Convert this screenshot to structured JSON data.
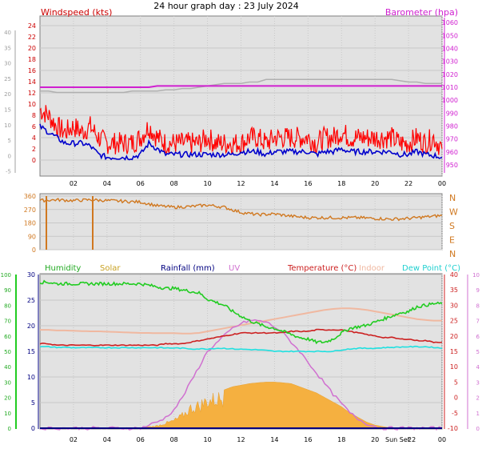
{
  "title": "24 hour graph day : 23 July 2024",
  "colors": {
    "wind": "#ff0000",
    "gust": "#0000cc",
    "baro": "#d020d0",
    "baro2": "#b0b0b0",
    "winddir": "#d07820",
    "humidity": "#22cc22",
    "solar": "#f5b040",
    "rainfall": "#000080",
    "uv": "#d070d0",
    "temperature": "#cc2020",
    "indoor": "#f0b8a0",
    "dewpoint": "#20e0e0",
    "plotbg": "#e2e2e2"
  },
  "x_ticks": [
    "02",
    "04",
    "06",
    "08",
    "10",
    "12",
    "14",
    "16",
    "18",
    "20",
    "22",
    "00"
  ],
  "sunset_label": "Sun Set",
  "sunset_tick": "22",
  "chart_data": [
    {
      "type": "line",
      "panel": "wind-baro",
      "left_label": "Windspeed (kts)",
      "right_label": "Barometer (hpa)",
      "ylim_left": [
        -2,
        25
      ],
      "yticks_left": [
        "24",
        "22",
        "20",
        "18",
        "16",
        "14",
        "12",
        "10",
        "8",
        "6",
        "4",
        "2",
        "0"
      ],
      "yticks_outer": [
        "40",
        "35",
        "30",
        "25",
        "20",
        "15",
        "10",
        "5",
        "0",
        "-5"
      ],
      "ylim_right": [
        945,
        1062
      ],
      "yticks_right": [
        "1060",
        "1050",
        "1040",
        "1030",
        "1020",
        "1010",
        "1000",
        "990",
        "980",
        "970",
        "960",
        "950"
      ],
      "x_hours": [
        0,
        0.5,
        1,
        1.5,
        2,
        2.5,
        3,
        3.5,
        4,
        4.5,
        5,
        5.5,
        6,
        6.5,
        7,
        7.5,
        8,
        8.5,
        9,
        9.5,
        10,
        10.5,
        11,
        11.5,
        12,
        12.5,
        13,
        13.5,
        14,
        14.5,
        15,
        15.5,
        16,
        16.5,
        17,
        17.5,
        18,
        18.5,
        19,
        19.5,
        20,
        20.5,
        21,
        21.5,
        22,
        22.5,
        23,
        23.5,
        24
      ],
      "series": [
        {
          "key": "wind_gust",
          "values": [
            9,
            8,
            6,
            5,
            6,
            5,
            6,
            4,
            3,
            3,
            3,
            3,
            4,
            6,
            4,
            3,
            3,
            3,
            3,
            3,
            4,
            3,
            3,
            3,
            3,
            4,
            4,
            3,
            4,
            4,
            4,
            4,
            4,
            3,
            4,
            4,
            5,
            4,
            4,
            4,
            4,
            4,
            4,
            3,
            3,
            4,
            3,
            4,
            2
          ]
        },
        {
          "key": "wind_avg",
          "values": [
            6,
            5,
            4,
            3,
            3,
            3,
            2.5,
            1,
            0.5,
            0.5,
            0.5,
            0.5,
            1,
            3,
            2,
            1,
            1,
            1,
            1,
            1,
            1,
            1,
            1,
            1,
            1.5,
            1.5,
            1.5,
            1,
            1.5,
            1.5,
            1.5,
            1.5,
            1.5,
            1,
            1.5,
            1.5,
            2,
            1.5,
            1.5,
            1.5,
            1.5,
            1.5,
            1.5,
            1,
            1,
            1.5,
            1,
            0.8,
            0.5
          ]
        },
        {
          "key": "barometer",
          "values": [
            1010,
            1010,
            1010,
            1010,
            1010,
            1010,
            1010,
            1010,
            1010,
            1010,
            1010,
            1010,
            1010,
            1010,
            1011,
            1011,
            1011,
            1011,
            1011,
            1011,
            1011,
            1011,
            1011,
            1011,
            1011,
            1011,
            1011,
            1011,
            1011,
            1011,
            1011,
            1011,
            1011,
            1011,
            1011,
            1011,
            1011,
            1011,
            1011,
            1011,
            1011,
            1011,
            1011,
            1011,
            1011,
            1011,
            1011,
            1011,
            1011
          ]
        },
        {
          "key": "barometer_grey",
          "values": [
            1007,
            1007,
            1006,
            1006,
            1006,
            1006,
            1006,
            1006,
            1006,
            1006,
            1006,
            1007,
            1007,
            1007,
            1007,
            1008,
            1008,
            1009,
            1009,
            1010,
            1011,
            1012,
            1013,
            1013,
            1013,
            1014,
            1014,
            1016,
            1016,
            1016,
            1016,
            1016,
            1016,
            1016,
            1016,
            1016,
            1016,
            1016,
            1016,
            1016,
            1016,
            1016,
            1016,
            1015,
            1014,
            1014,
            1013,
            1013,
            1013
          ]
        }
      ]
    },
    {
      "type": "line",
      "panel": "wind-direction",
      "ylim": [
        0,
        360
      ],
      "yticks": [
        "360",
        "270",
        "180",
        "90",
        "0"
      ],
      "compass": [
        "N",
        "W",
        "S",
        "E",
        "N"
      ],
      "x_hours": [
        0,
        1,
        2,
        3,
        4,
        5,
        6,
        7,
        8,
        9,
        10,
        11,
        12,
        13,
        14,
        15,
        16,
        17,
        18,
        19,
        20,
        21,
        22,
        23,
        24
      ],
      "values": [
        330,
        335,
        330,
        335,
        330,
        325,
        320,
        295,
        285,
        290,
        300,
        285,
        250,
        235,
        240,
        225,
        215,
        215,
        215,
        215,
        210,
        205,
        210,
        220,
        230
      ]
    },
    {
      "type": "area",
      "panel": "main",
      "legend": [
        "Humidity",
        "Solar",
        "Rainfall (mm)",
        "UV",
        "Temperature (°C)",
        "Indoor",
        "Dew Point (°C)"
      ],
      "ylim_humidity": [
        0,
        100
      ],
      "yticks_humidity": [
        "100",
        "90",
        "80",
        "70",
        "60",
        "50",
        "40",
        "30",
        "20",
        "10",
        "0"
      ],
      "ylim_rain": [
        0,
        30
      ],
      "yticks_rain": [
        "30",
        "25",
        "20",
        "15",
        "10",
        "5",
        "0"
      ],
      "ylim_temp": [
        -10,
        40
      ],
      "yticks_temp": [
        "40",
        "35",
        "30",
        "25",
        "20",
        "15",
        "10",
        "5",
        "0",
        "-5",
        "-10"
      ],
      "yticks_uv": [
        "10",
        "9",
        "8",
        "7",
        "6",
        "5",
        "4",
        "3",
        "2",
        "1",
        "0"
      ],
      "x_hours": [
        0,
        0.5,
        1,
        1.5,
        2,
        2.5,
        3,
        3.5,
        4,
        4.5,
        5,
        5.5,
        6,
        6.5,
        7,
        7.5,
        8,
        8.5,
        9,
        9.5,
        10,
        10.5,
        11,
        11.5,
        12,
        12.5,
        13,
        13.5,
        14,
        14.5,
        15,
        15.5,
        16,
        16.5,
        17,
        17.5,
        18,
        18.5,
        19,
        19.5,
        20,
        20.5,
        21,
        21.5,
        22,
        22.5,
        23,
        23.5,
        24
      ],
      "series": [
        {
          "key": "humidity",
          "values": [
            95,
            95,
            94,
            94,
            94,
            94,
            94,
            94,
            94,
            94,
            94,
            94,
            94,
            93,
            92,
            91,
            91,
            90,
            89,
            88,
            84,
            82,
            80,
            76,
            73,
            70,
            68,
            66,
            65,
            63,
            61,
            59,
            58,
            56,
            56,
            58,
            62,
            65,
            66,
            67,
            69,
            71,
            73,
            75,
            76,
            79,
            80,
            81,
            81
          ]
        },
        {
          "key": "temperature",
          "values": [
            17.5,
            17.5,
            17,
            17,
            17,
            17,
            17,
            17,
            17,
            17,
            17,
            17,
            17,
            17,
            17,
            17.5,
            17.5,
            17.5,
            18,
            18.5,
            19,
            19.5,
            20,
            20.5,
            21,
            21,
            21,
            21,
            21,
            21,
            21.5,
            21.5,
            21.5,
            22,
            22,
            22,
            22,
            21.5,
            21,
            20.5,
            20,
            19.5,
            19.5,
            19,
            19,
            18.5,
            18.5,
            18,
            18
          ]
        },
        {
          "key": "indoor",
          "values": [
            22,
            22,
            21.8,
            21.8,
            21.7,
            21.6,
            21.5,
            21.5,
            21.4,
            21.3,
            21.2,
            21.1,
            21,
            21,
            20.9,
            20.9,
            20.9,
            20.8,
            20.8,
            21,
            21.5,
            22,
            22.5,
            23,
            23.5,
            24,
            24.5,
            25,
            25.5,
            26,
            26.5,
            27,
            27.5,
            28,
            28.5,
            28.8,
            29,
            29,
            28.8,
            28.5,
            28,
            27.5,
            27,
            26.5,
            26,
            25.5,
            25.2,
            25,
            25
          ]
        },
        {
          "key": "dewpoint",
          "values": [
            16.5,
            16.5,
            16.3,
            16.3,
            16.2,
            16.2,
            16.2,
            16.2,
            16.2,
            16.2,
            16.2,
            16.2,
            16.2,
            16.2,
            16.2,
            16.1,
            16.1,
            16,
            15.8,
            15.8,
            15.8,
            16,
            16,
            15.8,
            15.7,
            15.6,
            15.5,
            15.3,
            15,
            15,
            15,
            15,
            15,
            15,
            15,
            15,
            15.5,
            15.8,
            16,
            16,
            16,
            16.2,
            16.3,
            16.4,
            16.5,
            16.5,
            16.5,
            16.3,
            16
          ]
        },
        {
          "key": "solar",
          "values": [
            0,
            0,
            0,
            0,
            0,
            0,
            0,
            0,
            0,
            0,
            0,
            0,
            0,
            0.5,
            1,
            2,
            3,
            5,
            8,
            9,
            11,
            11.5,
            12.5,
            13.5,
            14,
            14.5,
            14.8,
            15,
            15,
            14.8,
            14.5,
            13.5,
            12.5,
            11.5,
            10,
            8.5,
            7,
            5,
            3.5,
            2,
            1,
            0.5,
            0,
            0,
            0,
            0,
            0,
            0,
            0
          ]
        },
        {
          "key": "uv",
          "values": [
            0,
            0,
            0,
            0,
            0,
            0,
            0,
            0,
            0,
            0,
            0,
            0,
            0,
            0.2,
            0.4,
            0.7,
            1.2,
            2,
            3,
            4,
            5,
            5.5,
            6,
            6.5,
            6.8,
            7,
            7,
            6.9,
            6.6,
            6.2,
            5.6,
            5,
            4.3,
            3.6,
            2.9,
            2.2,
            1.6,
            1,
            0.6,
            0.3,
            0.1,
            0,
            0,
            0,
            0,
            0,
            0,
            0,
            0
          ]
        },
        {
          "key": "rainfall",
          "values": [
            0,
            0,
            0,
            0,
            0,
            0,
            0,
            0,
            0,
            0,
            0,
            0,
            0,
            0,
            0,
            0,
            0,
            0,
            0,
            0,
            0,
            0,
            0,
            0,
            0,
            0,
            0,
            0,
            0,
            0,
            0,
            0,
            0,
            0,
            0,
            0,
            0,
            0,
            0,
            0,
            0,
            0,
            0,
            0,
            0,
            0,
            0,
            0,
            0
          ]
        }
      ]
    }
  ]
}
